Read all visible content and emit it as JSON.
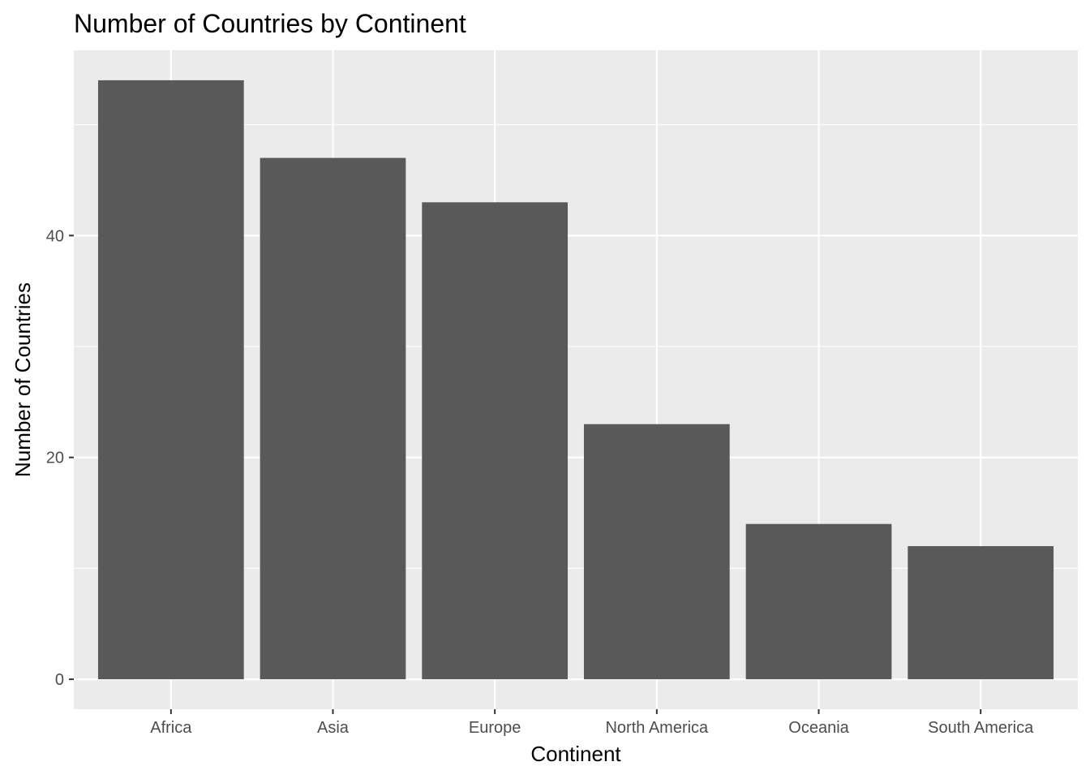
{
  "chart_data": {
    "type": "bar",
    "title": "Number of Countries by Continent",
    "xlabel": "Continent",
    "ylabel": "Number of Countries",
    "categories": [
      "Africa",
      "Asia",
      "Europe",
      "North America",
      "Oceania",
      "South America"
    ],
    "values": [
      54,
      47,
      43,
      23,
      14,
      12
    ],
    "ylim": [
      -2.7,
      56.7
    ],
    "yticks": [
      0,
      20,
      40
    ],
    "grid": true,
    "bar_color": "#595959",
    "panel_background": "#ebebeb",
    "grid_color": "#ffffff"
  }
}
